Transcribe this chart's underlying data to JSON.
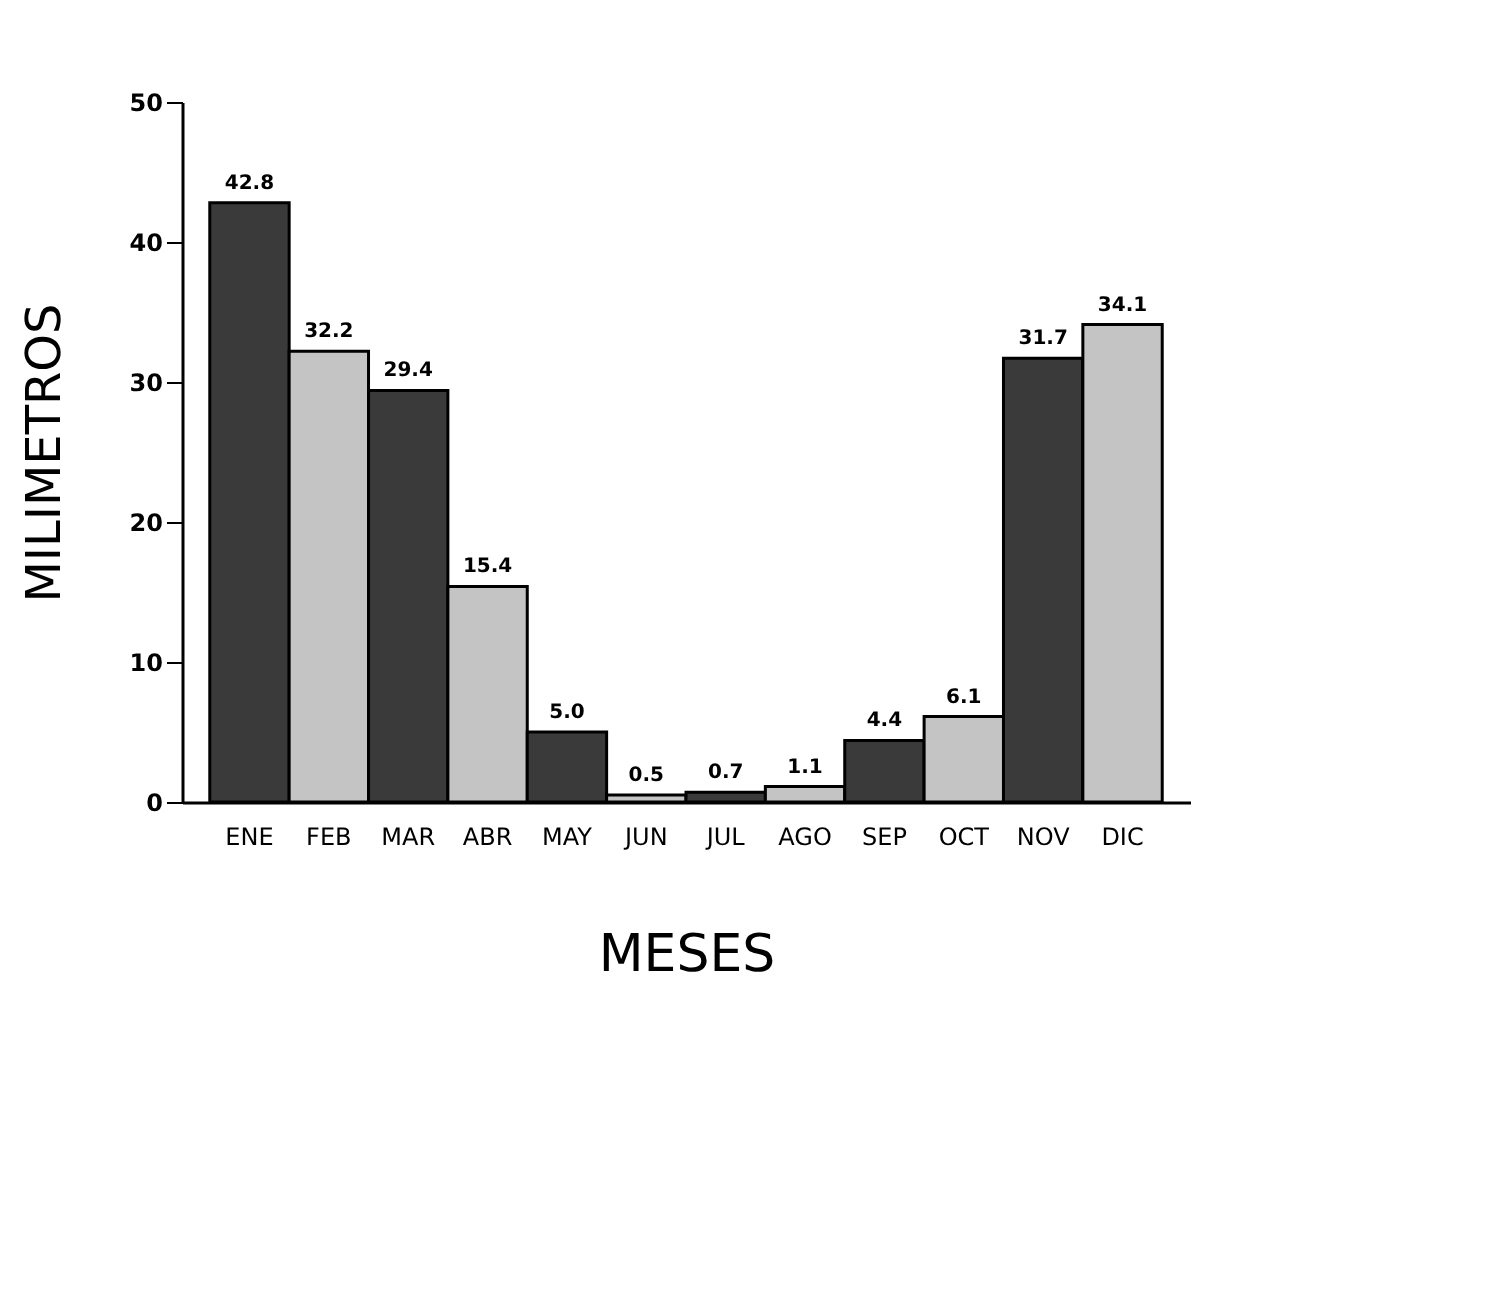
{
  "chart_data": {
    "type": "bar",
    "xlabel": "MESES",
    "ylabel": "MILIMETROS",
    "categories": [
      "ENE",
      "FEB",
      "MAR",
      "ABR",
      "MAY",
      "JUN",
      "JUL",
      "AGO",
      "SEP",
      "OCT",
      "NOV",
      "DIC"
    ],
    "values": [
      42.8,
      32.2,
      29.4,
      15.4,
      5.0,
      0.5,
      0.7,
      1.1,
      4.4,
      6.1,
      31.7,
      34.1
    ],
    "colors": [
      "#3a3a3a",
      "#c4c4c4",
      "#3a3a3a",
      "#c4c4c4",
      "#3a3a3a",
      "#c4c4c4",
      "#3a3a3a",
      "#c4c4c4",
      "#3a3a3a",
      "#c4c4c4",
      "#3a3a3a",
      "#c4c4c4"
    ],
    "value_labels": [
      "42.8",
      "32.2",
      "29.4",
      "15.4",
      "5.0",
      "0.5",
      "0.7",
      "1.1",
      "4.4",
      "6.1",
      "31.7",
      "34.1"
    ],
    "ylim": [
      0,
      50
    ],
    "yticks": [
      0,
      10,
      20,
      30,
      40,
      50
    ],
    "grid": false
  }
}
